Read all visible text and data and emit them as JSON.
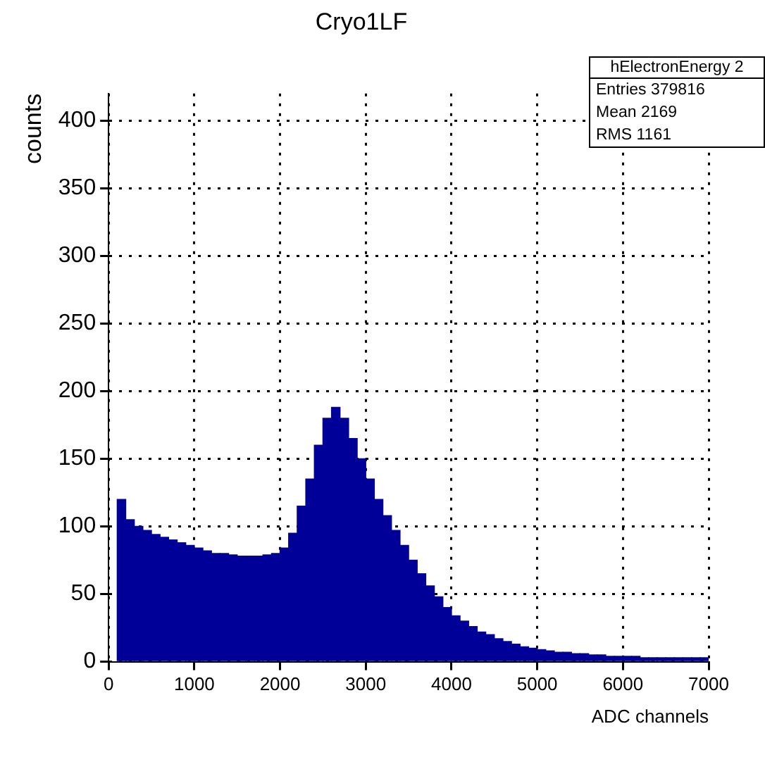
{
  "chart_data": {
    "type": "histogram",
    "title": "Cryo1LF",
    "xlabel": "ADC channels",
    "ylabel": "counts",
    "annotations": [
      "hElectronEnergy 2",
      "Entries 379816",
      "Mean 2169",
      "RMS 1161"
    ],
    "bins": [
      100,
      200,
      300,
      400,
      500,
      600,
      700,
      800,
      900,
      1000,
      1100,
      1200,
      1300,
      1400,
      1500,
      1600,
      1700,
      1800,
      1900,
      2000,
      2100,
      2200,
      2300,
      2400,
      2500,
      2600,
      2700,
      2800,
      2900,
      3000,
      3100,
      3200,
      3300,
      3400,
      3500,
      3600,
      3700,
      3800,
      3900,
      4000,
      4100,
      4200,
      4300,
      4400,
      4500,
      4600,
      4700,
      4800,
      4900,
      5000,
      5100,
      5200,
      5300,
      5400,
      5500,
      5600,
      5700,
      5800,
      5900,
      6000,
      6100,
      6200,
      6300,
      6400,
      6500,
      6600,
      6700,
      6800,
      6900,
      7000
    ],
    "values": [
      120,
      105,
      100,
      97,
      94,
      92,
      90,
      88,
      86,
      84,
      82,
      80,
      80,
      79,
      78,
      78,
      78,
      79,
      80,
      84,
      95,
      115,
      135,
      160,
      180,
      188,
      180,
      165,
      150,
      135,
      120,
      108,
      97,
      86,
      75,
      65,
      56,
      48,
      40,
      34,
      30,
      26,
      22,
      20,
      17,
      15,
      13,
      11,
      10,
      9,
      8,
      7,
      7,
      6,
      6,
      5,
      5,
      4,
      4,
      4,
      4,
      3,
      3,
      3,
      3,
      3,
      3,
      3,
      3
    ],
    "color": "#000099",
    "xlim": [
      0,
      7000
    ],
    "xticks": [
      0,
      1000,
      2000,
      3000,
      4000,
      5000,
      6000,
      7000
    ],
    "ylim": [
      0,
      420
    ],
    "yticks": [
      0,
      50,
      100,
      150,
      200,
      250,
      300,
      350,
      400
    ],
    "grid": true
  }
}
